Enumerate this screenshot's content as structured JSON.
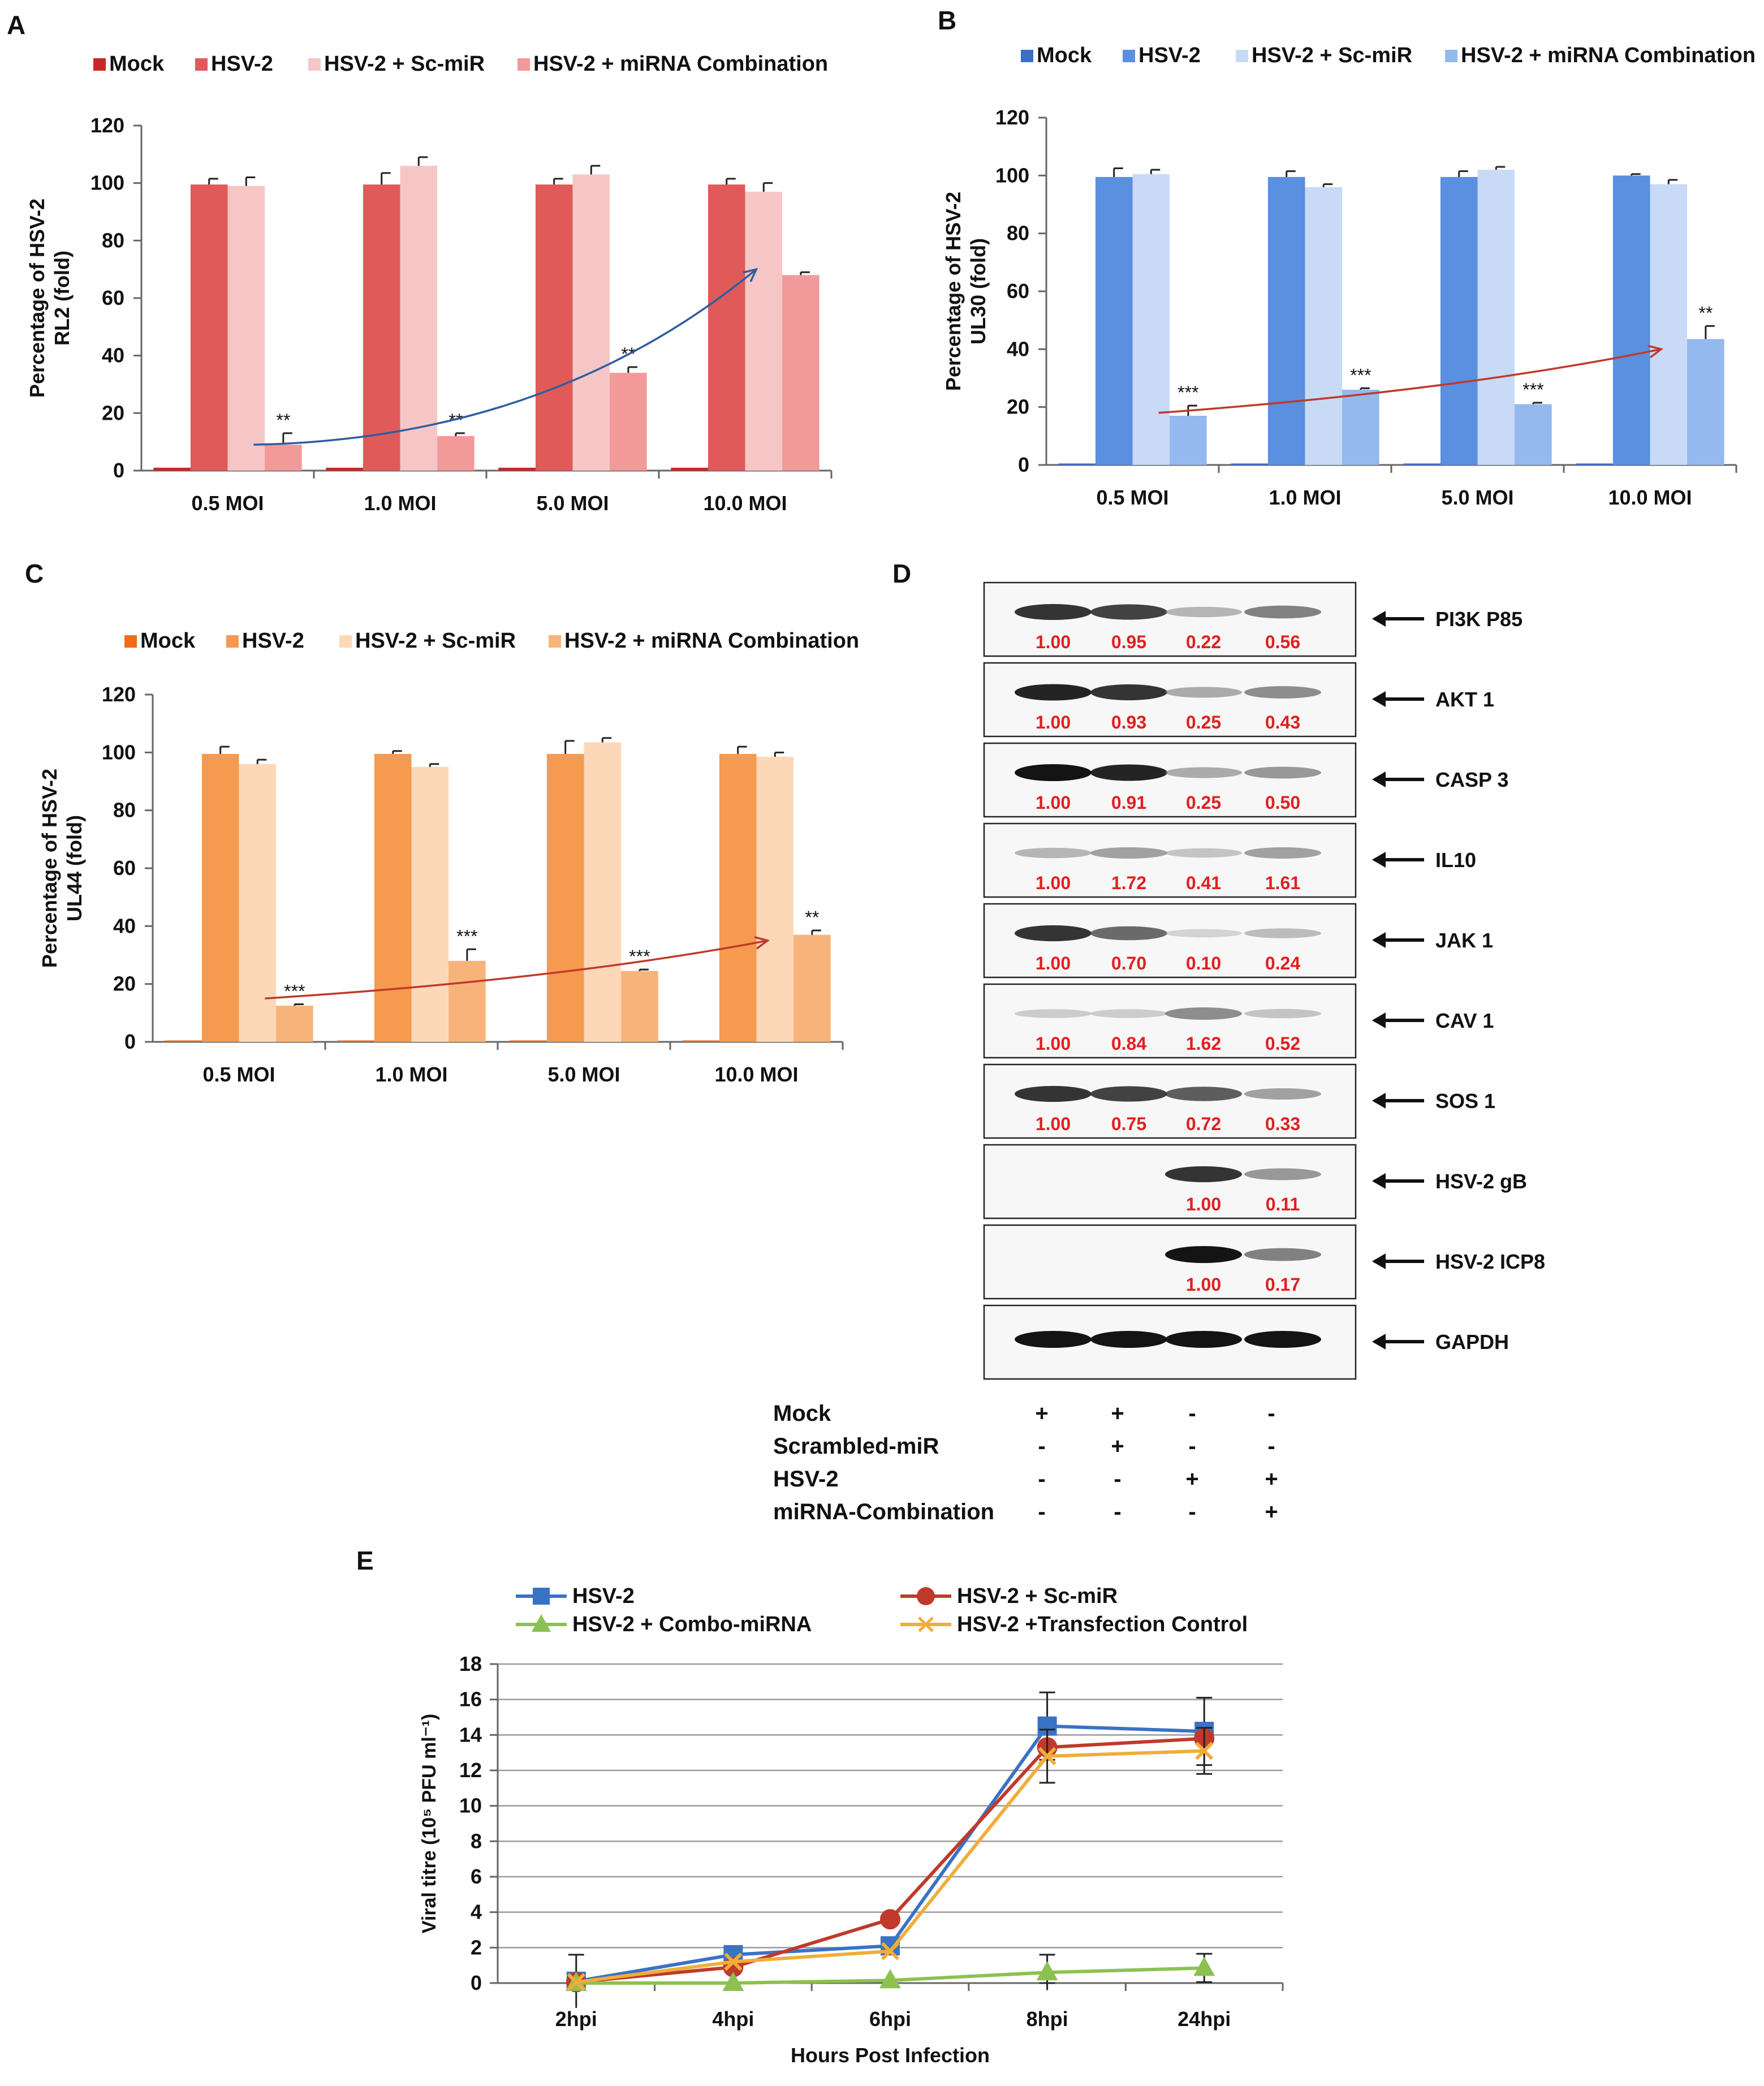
{
  "colors": {
    "A": [
      "#c62828",
      "#e05a5a",
      "#f6c6c6",
      "#f29a9a"
    ],
    "B": [
      "#3b6fc2",
      "#5b8fdf",
      "#c8daf6",
      "#93b9ee"
    ],
    "C": [
      "#ef6c1a",
      "#f59a4f",
      "#fcd8b8",
      "#f8b37a"
    ],
    "E": [
      "#3a72c4",
      "#c0392b",
      "#8cc152",
      "#f0ad3a"
    ],
    "trend_A": "#2e5d9e",
    "trend_BC": "#c0392b",
    "ratio": "#e02020"
  },
  "chart_data": [
    {
      "panel": "A",
      "type": "bar",
      "ylabel_lines": [
        "Percentage of HSV-2",
        "RL2 (fold)"
      ],
      "ylim": [
        0,
        120
      ],
      "ticks": [
        0,
        20,
        40,
        60,
        80,
        100,
        120
      ],
      "categories": [
        "0.5 MOI",
        "1.0 MOI",
        "5.0 MOI",
        "10.0 MOI"
      ],
      "series": [
        {
          "name": "Mock",
          "values": [
            1,
            1,
            1,
            1
          ],
          "err": [
            0,
            0,
            0,
            0
          ]
        },
        {
          "name": "HSV-2",
          "values": [
            99.5,
            99.5,
            99.5,
            99.5
          ],
          "err": [
            2,
            4,
            2,
            2
          ]
        },
        {
          "name": "HSV-2 + Sc-miR",
          "values": [
            99,
            106,
            103,
            97
          ],
          "err": [
            3,
            3,
            3,
            3
          ]
        },
        {
          "name": "HSV-2 + miRNA Combination",
          "values": [
            9,
            12,
            34,
            68
          ],
          "err": [
            4,
            1,
            2,
            1
          ]
        }
      ],
      "significance": [
        "**",
        "**",
        "**",
        ""
      ],
      "trend": [
        9,
        70
      ]
    },
    {
      "panel": "B",
      "type": "bar",
      "ylabel_lines": [
        "Percentage of HSV-2",
        "UL30 (fold)"
      ],
      "ylim": [
        0,
        120
      ],
      "ticks": [
        0,
        20,
        40,
        60,
        80,
        100,
        120
      ],
      "categories": [
        "0.5 MOI",
        "1.0 MOI",
        "5.0 MOI",
        "10.0 MOI"
      ],
      "series": [
        {
          "name": "Mock",
          "values": [
            0.5,
            0.5,
            0.5,
            0.5
          ],
          "err": [
            0,
            0,
            0,
            0
          ]
        },
        {
          "name": "HSV-2",
          "values": [
            99.5,
            99.5,
            99.5,
            100
          ],
          "err": [
            3,
            2,
            2,
            0.5
          ]
        },
        {
          "name": "HSV-2 + Sc-miR",
          "values": [
            100.5,
            96,
            102,
            97
          ],
          "err": [
            1.5,
            1,
            1,
            1.5
          ]
        },
        {
          "name": "HSV-2 + miRNA Combination",
          "values": [
            17,
            26,
            21,
            43.5
          ],
          "err": [
            3.5,
            0.5,
            0.5,
            4.5
          ]
        }
      ],
      "significance": [
        "***",
        "***",
        "***",
        "**"
      ],
      "trend": [
        18,
        40
      ]
    },
    {
      "panel": "C",
      "type": "bar",
      "ylabel_lines": [
        "Percentage of HSV-2",
        "UL44 (fold)"
      ],
      "ylim": [
        0,
        120
      ],
      "ticks": [
        0,
        20,
        40,
        60,
        80,
        100,
        120
      ],
      "categories": [
        "0.5 MOI",
        "1.0 MOI",
        "5.0 MOI",
        "10.0 MOI"
      ],
      "series": [
        {
          "name": "Mock",
          "values": [
            0.5,
            0.5,
            0.5,
            0.5
          ],
          "err": [
            0,
            0,
            0,
            0
          ]
        },
        {
          "name": "HSV-2",
          "values": [
            99.5,
            99.5,
            99.5,
            99.5
          ],
          "err": [
            2.5,
            1,
            4.5,
            2.5
          ]
        },
        {
          "name": "HSV-2 + Sc-miR",
          "values": [
            96,
            95,
            103.5,
            98.5
          ],
          "err": [
            1.5,
            1,
            1.5,
            1.5
          ]
        },
        {
          "name": "HSV-2 + miRNA Combination",
          "values": [
            12.5,
            28,
            24.5,
            37
          ],
          "err": [
            0.5,
            4,
            0.5,
            1.5
          ]
        }
      ],
      "significance": [
        "***",
        "***",
        "***",
        "**"
      ],
      "trend": [
        15,
        35
      ]
    },
    {
      "panel": "E",
      "type": "line",
      "ylabel": "Viral titre (10⁵ PFU ml⁻¹)",
      "xlabel": "Hours Post Infection",
      "ylim": [
        0,
        18
      ],
      "ticks": [
        0,
        2,
        4,
        6,
        8,
        10,
        12,
        14,
        16,
        18
      ],
      "x": [
        "2hpi",
        "4hpi",
        "6hpi",
        "8hpi",
        "24hpi"
      ],
      "series": [
        {
          "name": "HSV-2",
          "values": [
            0.1,
            1.6,
            2.1,
            14.5,
            14.2
          ],
          "err": [
            1.5,
            0,
            0,
            1.9,
            1.9
          ]
        },
        {
          "name": "HSV-2 + Sc-miR",
          "values": [
            0.05,
            0.9,
            3.6,
            13.3,
            13.8
          ],
          "err": [
            0,
            0,
            0,
            0,
            0
          ]
        },
        {
          "name": "HSV-2 + Combo-miRNA",
          "values": [
            0,
            0,
            0.15,
            0.6,
            0.85
          ],
          "err": [
            0,
            0,
            0,
            1.0,
            0.8
          ]
        },
        {
          "name": "HSV-2 +Transfection Control",
          "values": [
            0.05,
            1.2,
            1.8,
            12.8,
            13.1
          ],
          "err": [
            0,
            0,
            0,
            1.5,
            1.3
          ]
        }
      ]
    }
  ],
  "blot": {
    "rows": [
      {
        "label": "PI3K P85",
        "values": [
          "1.00",
          "0.95",
          "0.22",
          "0.56"
        ],
        "bands": [
          0.9,
          0.85,
          0.35,
          0.6
        ]
      },
      {
        "label": "AKT 1",
        "values": [
          "1.00",
          "0.93",
          "0.25",
          "0.43"
        ],
        "bands": [
          0.95,
          0.9,
          0.4,
          0.55
        ]
      },
      {
        "label": "CASP 3",
        "values": [
          "1.00",
          "0.91",
          "0.25",
          "0.50"
        ],
        "bands": [
          1.0,
          0.95,
          0.4,
          0.5
        ]
      },
      {
        "label": "IL10",
        "values": [
          "1.00",
          "1.72",
          "0.41",
          "1.61"
        ],
        "bands": [
          0.35,
          0.45,
          0.25,
          0.45
        ]
      },
      {
        "label": "JAK 1",
        "values": [
          "1.00",
          "0.70",
          "0.10",
          "0.24"
        ],
        "bands": [
          0.9,
          0.7,
          0.15,
          0.3
        ]
      },
      {
        "label": "CAV 1",
        "values": [
          "1.00",
          "0.84",
          "1.62",
          "0.52"
        ],
        "bands": [
          0.2,
          0.2,
          0.55,
          0.25
        ]
      },
      {
        "label": "SOS 1",
        "values": [
          "1.00",
          "0.75",
          "0.72",
          "0.33"
        ],
        "bands": [
          0.9,
          0.85,
          0.75,
          0.45
        ]
      },
      {
        "label": "HSV-2 gB",
        "values": [
          "",
          "",
          "1.00",
          "0.11"
        ],
        "bands": [
          0,
          0,
          0.9,
          0.5
        ]
      },
      {
        "label": "HSV-2 ICP8",
        "values": [
          "",
          "",
          "1.00",
          "0.17"
        ],
        "bands": [
          0,
          0,
          1.0,
          0.6
        ]
      },
      {
        "label": "GAPDH",
        "values": [
          "",
          "",
          "",
          ""
        ],
        "bands": [
          1.0,
          1.0,
          1.0,
          1.0
        ]
      }
    ],
    "conditions": [
      {
        "label": "Mock",
        "signs": [
          "+",
          "+",
          "-",
          "-"
        ]
      },
      {
        "label": "Scrambled-miR",
        "signs": [
          "-",
          "+",
          "-",
          "-"
        ]
      },
      {
        "label": "HSV-2",
        "signs": [
          "-",
          "-",
          "+",
          "+"
        ]
      },
      {
        "label": "miRNA-Combination",
        "signs": [
          "-",
          "-",
          "-",
          "+"
        ]
      }
    ]
  }
}
